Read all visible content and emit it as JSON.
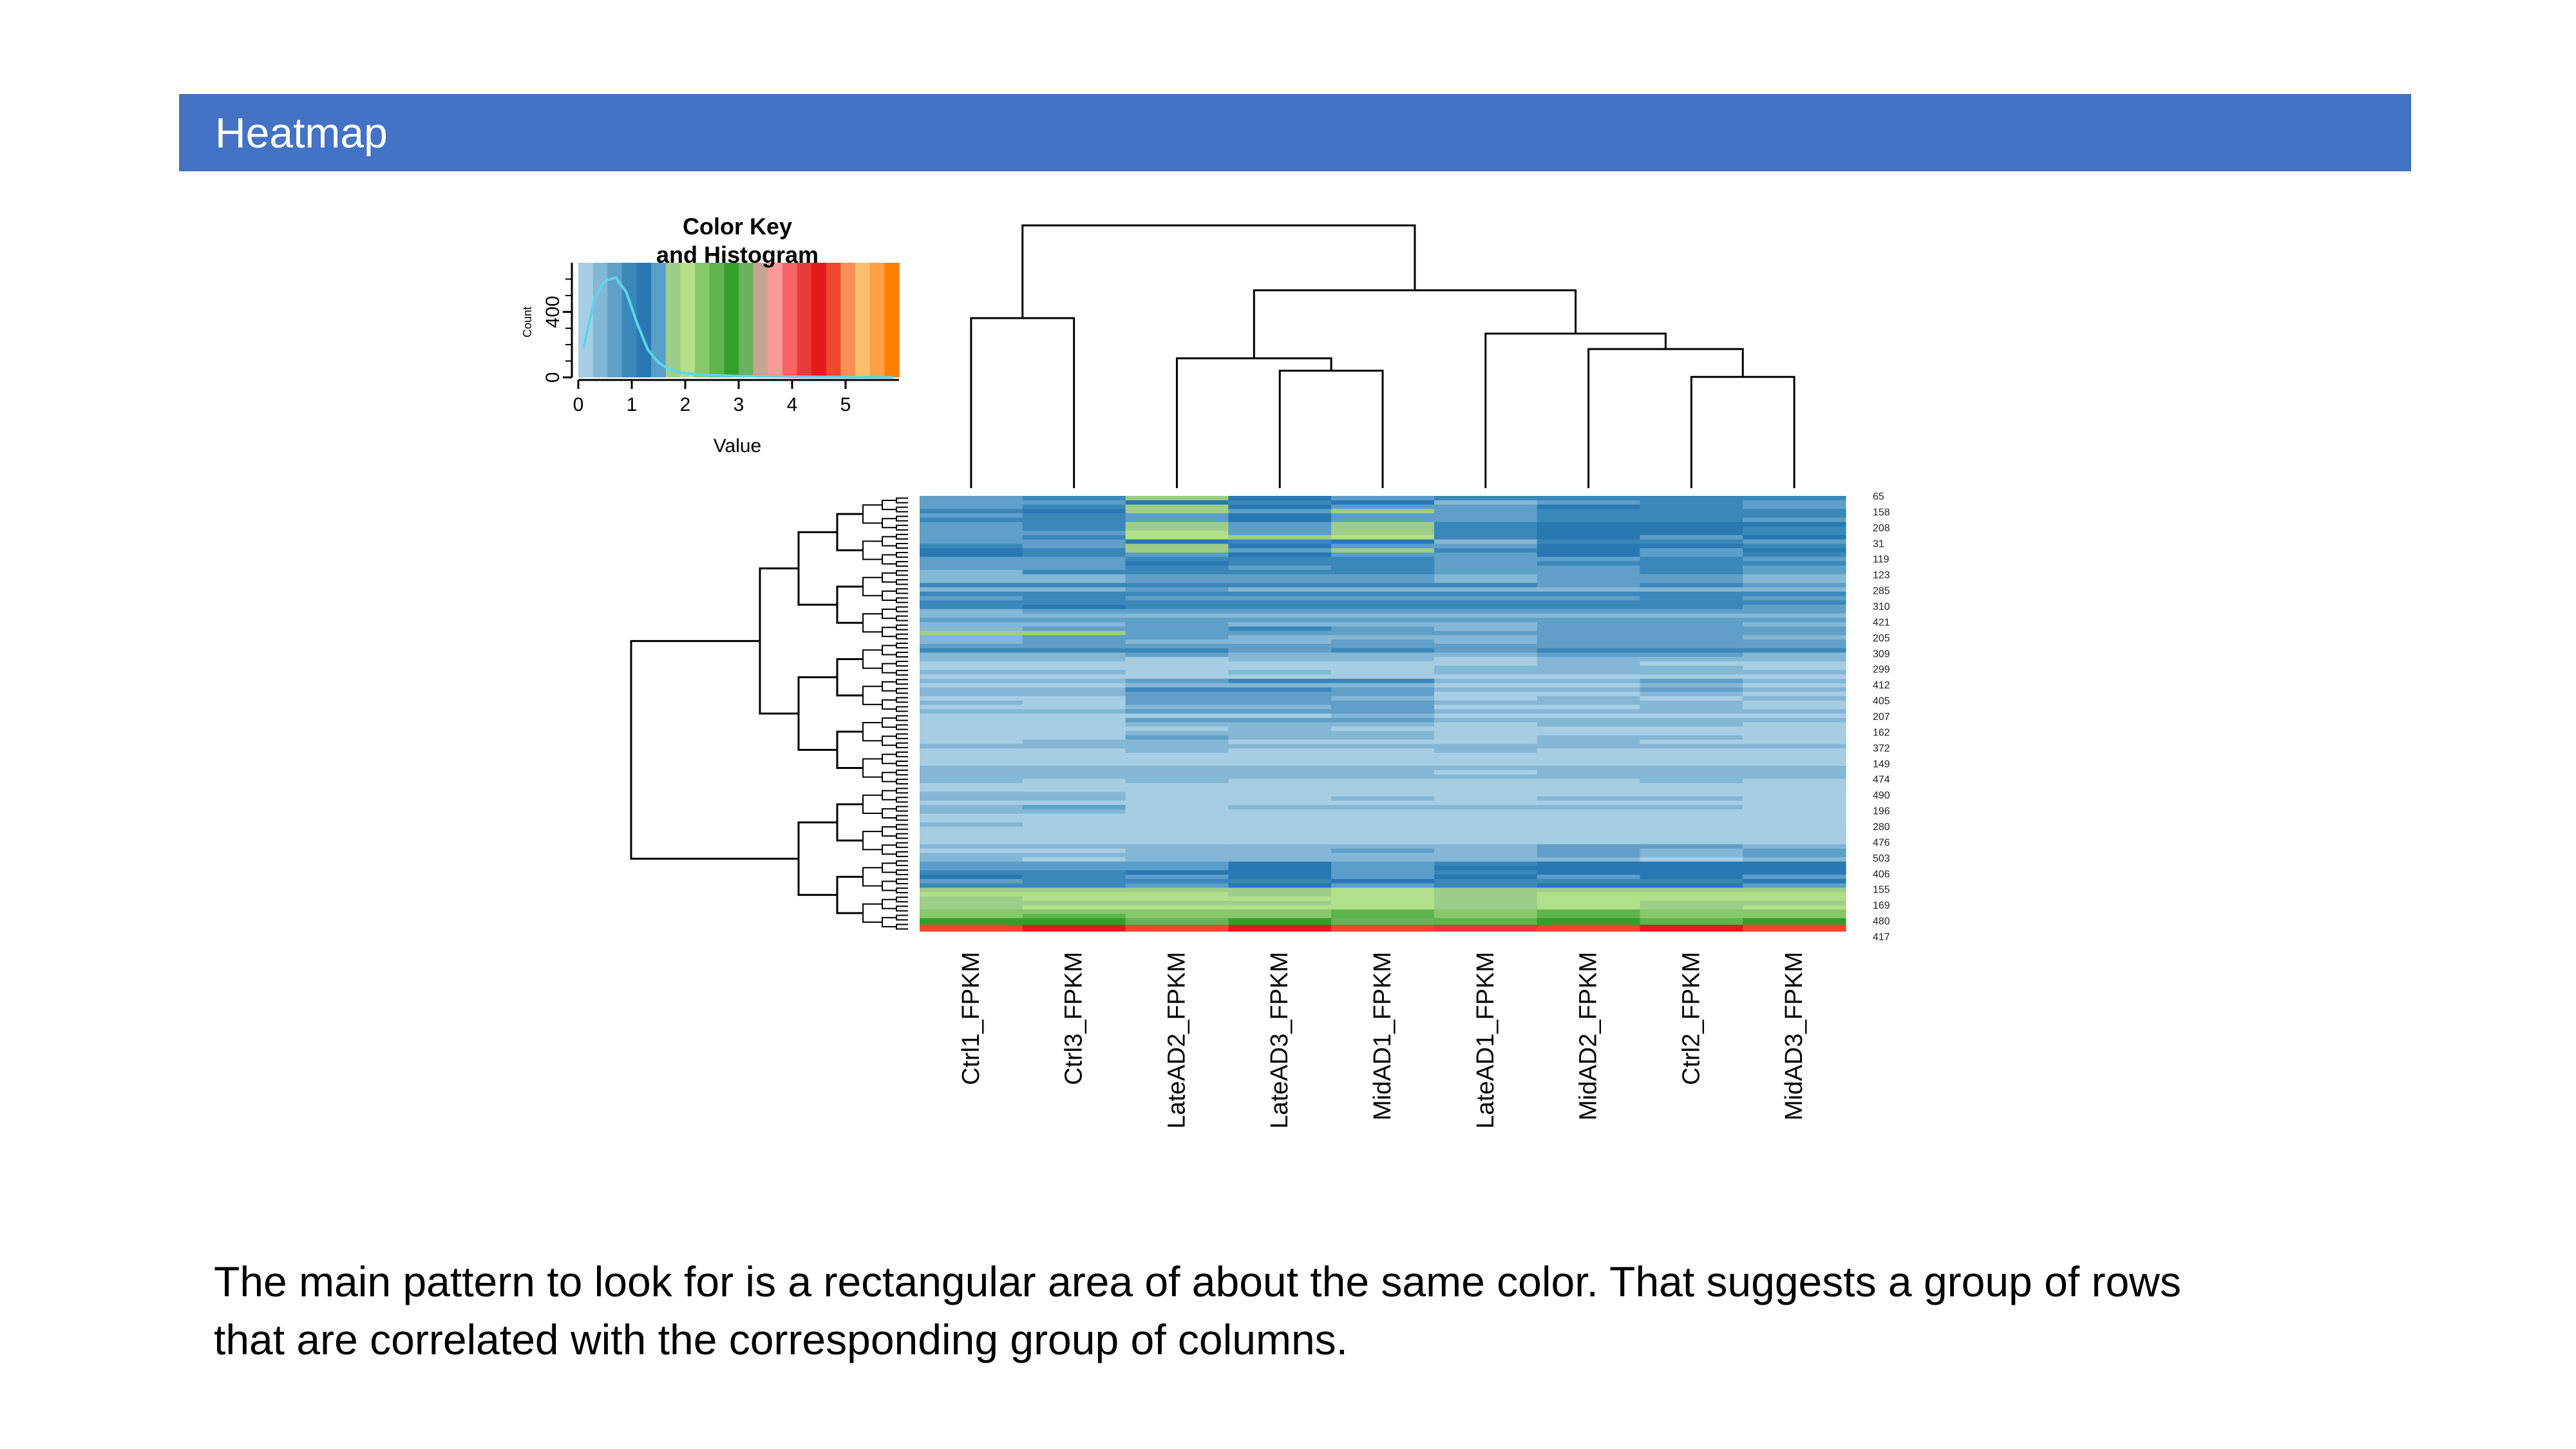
{
  "slide": {
    "title": "Heatmap",
    "caption_line1": "The main pattern to look for is a rectangular area of about the same color.  That suggests a group of rows",
    "caption_line2": "that are correlated with the corresponding group of columns.",
    "header_color": "#4472c4"
  },
  "chart_data": {
    "type": "heatmap",
    "columns": [
      "Ctrl1_FPKM",
      "Ctrl3_FPKM",
      "LateAD2_FPKM",
      "LateAD3_FPKM",
      "MidAD1_FPKM",
      "LateAD1_FPKM",
      "MidAD2_FPKM",
      "Ctrl2_FPKM",
      "MidAD3_FPKM"
    ],
    "row_labels": [
      "65",
      "158",
      "208",
      "31",
      "119",
      "123",
      "285",
      "310",
      "421",
      "205",
      "309",
      "299",
      "412",
      "405",
      "207",
      "162",
      "372",
      "149",
      "474",
      "490",
      "196",
      "280",
      "476",
      "503",
      "406",
      "155",
      "169",
      "480",
      "417"
    ],
    "color_key": {
      "title_line1": "Color Key",
      "title_line2": "and Histogram",
      "xlabel": "Value",
      "ylabel": "Count",
      "x_ticks": [
        "0",
        "1",
        "2",
        "3",
        "4",
        "5"
      ],
      "y_ticks": [
        "0",
        "400"
      ],
      "range": [
        0,
        6
      ],
      "colors": [
        "#a6cee3",
        "#84b7d5",
        "#5f9fc8",
        "#3a87ba",
        "#2a78b2",
        "#5a9fcb",
        "#9ecd8a",
        "#b2df8a",
        "#86c86a",
        "#5fb44d",
        "#33a02c",
        "#69b35a",
        "#c8a592",
        "#fb9a99",
        "#f46567",
        "#e9393a",
        "#e31a1c",
        "#f04830",
        "#fc8d59",
        "#fdbf6f",
        "#fea044",
        "#ff7f00"
      ],
      "histogram": [
        {
          "value": 0.1,
          "count": 180
        },
        {
          "value": 0.3,
          "count": 480
        },
        {
          "value": 0.5,
          "count": 590
        },
        {
          "value": 0.7,
          "count": 610
        },
        {
          "value": 0.9,
          "count": 520
        },
        {
          "value": 1.1,
          "count": 330
        },
        {
          "value": 1.3,
          "count": 170
        },
        {
          "value": 1.5,
          "count": 90
        },
        {
          "value": 1.7,
          "count": 50
        },
        {
          "value": 1.9,
          "count": 30
        },
        {
          "value": 2.3,
          "count": 15
        },
        {
          "value": 3.0,
          "count": 8
        },
        {
          "value": 4.0,
          "count": 4
        },
        {
          "value": 5.0,
          "count": 2
        },
        {
          "value": 5.9,
          "count": 1
        }
      ]
    },
    "row_bands": [
      {
        "from": 0.0,
        "to": 0.03,
        "values": [
          0.8,
          0.8,
          1.6,
          1.1,
          1.4,
          0.7,
          0.9,
          0.9,
          0.8
        ]
      },
      {
        "from": 0.03,
        "to": 0.06,
        "values": [
          0.9,
          0.9,
          1.7,
          1.3,
          1.6,
          0.8,
          1.0,
          1.0,
          0.9
        ]
      },
      {
        "from": 0.06,
        "to": 0.1,
        "values": [
          0.7,
          0.8,
          1.9,
          1.4,
          1.8,
          0.8,
          1.2,
          1.3,
          1.0
        ]
      },
      {
        "from": 0.1,
        "to": 0.14,
        "values": [
          0.8,
          0.7,
          1.5,
          1.2,
          1.5,
          0.7,
          1.1,
          1.2,
          0.9
        ]
      },
      {
        "from": 0.14,
        "to": 0.2,
        "values": [
          0.6,
          0.7,
          0.9,
          0.8,
          0.8,
          0.6,
          0.8,
          0.8,
          0.7
        ]
      },
      {
        "from": 0.2,
        "to": 0.26,
        "values": [
          0.7,
          0.8,
          0.7,
          0.7,
          0.7,
          0.6,
          0.6,
          0.7,
          0.6
        ]
      },
      {
        "from": 0.26,
        "to": 0.31,
        "values": [
          0.5,
          0.6,
          0.6,
          0.6,
          0.6,
          0.5,
          0.6,
          0.6,
          0.6
        ]
      },
      {
        "from": 0.31,
        "to": 0.32,
        "values": [
          1.6,
          1.6,
          0.6,
          0.6,
          0.6,
          0.5,
          0.6,
          0.6,
          0.6
        ]
      },
      {
        "from": 0.32,
        "to": 0.36,
        "values": [
          0.6,
          0.7,
          0.6,
          0.6,
          0.6,
          0.6,
          0.7,
          0.7,
          0.7
        ]
      },
      {
        "from": 0.36,
        "to": 0.42,
        "values": [
          0.3,
          0.4,
          0.3,
          0.3,
          0.3,
          0.3,
          0.4,
          0.4,
          0.4
        ]
      },
      {
        "from": 0.42,
        "to": 0.5,
        "values": [
          0.3,
          0.3,
          0.6,
          0.6,
          0.6,
          0.3,
          0.3,
          0.4,
          0.3
        ]
      },
      {
        "from": 0.5,
        "to": 0.56,
        "values": [
          0.2,
          0.2,
          0.5,
          0.5,
          0.5,
          0.2,
          0.3,
          0.3,
          0.3
        ]
      },
      {
        "from": 0.56,
        "to": 0.62,
        "values": [
          0.3,
          0.3,
          0.3,
          0.3,
          0.3,
          0.3,
          0.3,
          0.3,
          0.3
        ]
      },
      {
        "from": 0.62,
        "to": 0.66,
        "values": [
          0.4,
          0.4,
          0.4,
          0.4,
          0.4,
          0.3,
          0.4,
          0.4,
          0.4
        ]
      },
      {
        "from": 0.66,
        "to": 0.7,
        "values": [
          0.4,
          0.3,
          0.1,
          0.1,
          0.2,
          0.1,
          0.2,
          0.2,
          0.2
        ]
      },
      {
        "from": 0.7,
        "to": 0.76,
        "values": [
          0.3,
          0.3,
          0.1,
          0.1,
          0.1,
          0.1,
          0.1,
          0.1,
          0.1
        ]
      },
      {
        "from": 0.76,
        "to": 0.8,
        "values": [
          0.3,
          0.3,
          0.2,
          0.2,
          0.3,
          0.2,
          0.3,
          0.3,
          0.3
        ]
      },
      {
        "from": 0.8,
        "to": 0.84,
        "values": [
          0.4,
          0.4,
          0.5,
          0.5,
          0.6,
          0.5,
          0.6,
          0.5,
          0.6
        ]
      },
      {
        "from": 0.84,
        "to": 0.86,
        "values": [
          1.5,
          1.5,
          1.6,
          1.4,
          1.7,
          1.3,
          1.5,
          1.4,
          1.5
        ]
      },
      {
        "from": 0.86,
        "to": 0.9,
        "values": [
          0.9,
          0.9,
          1.3,
          1.2,
          1.4,
          1.0,
          1.3,
          1.2,
          1.3
        ]
      },
      {
        "from": 0.9,
        "to": 0.94,
        "values": [
          1.8,
          1.9,
          1.9,
          1.8,
          2.0,
          1.7,
          1.9,
          1.8,
          1.9
        ]
      },
      {
        "from": 0.94,
        "to": 0.97,
        "values": [
          2.2,
          2.3,
          2.4,
          2.2,
          2.4,
          2.0,
          2.3,
          2.2,
          2.3
        ]
      },
      {
        "from": 0.97,
        "to": 0.985,
        "values": [
          2.6,
          2.5,
          2.8,
          2.6,
          2.8,
          2.4,
          2.7,
          2.5,
          2.6
        ]
      },
      {
        "from": 0.985,
        "to": 1.0,
        "values": [
          4.4,
          4.2,
          4.6,
          4.3,
          4.6,
          4.1,
          4.5,
          4.3,
          4.4
        ]
      }
    ],
    "column_dendrogram": [
      {
        "a": 0,
        "b": 1,
        "height": 0.55
      },
      {
        "a": 3,
        "b": 4,
        "height": 0.38
      },
      {
        "a": 2,
        "b": "n1",
        "height": 0.42
      },
      {
        "a": 7,
        "b": 8,
        "height": 0.36
      },
      {
        "a": 6,
        "b": "n3",
        "height": 0.45
      },
      {
        "a": 5,
        "b": "n4",
        "height": 0.5
      },
      {
        "a": "n2",
        "b": "n5",
        "height": 0.64
      },
      {
        "a": "n0",
        "b": "n6",
        "height": 0.85
      }
    ]
  }
}
